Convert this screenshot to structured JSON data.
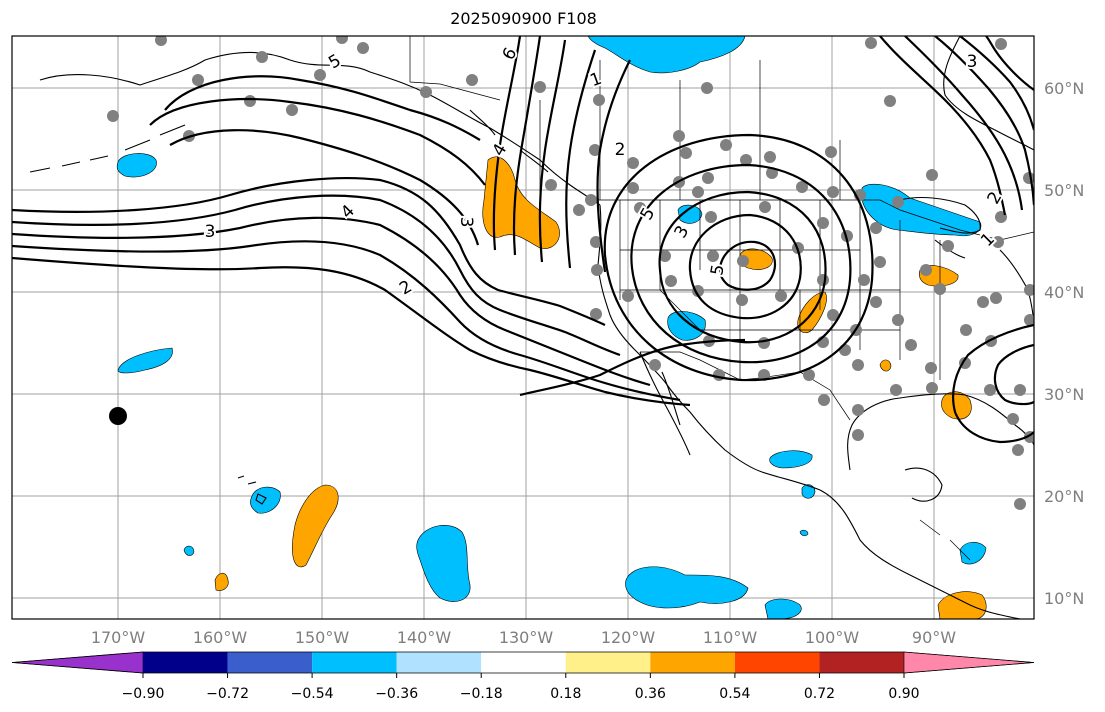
{
  "title": "2025090900 F108",
  "map": {
    "lon_ticks": [
      "170°W",
      "160°W",
      "150°W",
      "140°W",
      "130°W",
      "120°W",
      "110°W",
      "100°W",
      "90°W"
    ],
    "lat_ticks": [
      "10°N",
      "20°N",
      "30°N",
      "40°N",
      "50°N",
      "60°N"
    ],
    "contour_labels": [
      "6",
      "5",
      "1",
      "3",
      "4",
      "3",
      "2",
      "5",
      "4",
      "3",
      "2",
      "5",
      "3",
      "2",
      "1"
    ],
    "contour_color": "#000000",
    "station_dot_color": "#808080"
  },
  "colorbar": {
    "ticks": [
      "−0.90",
      "−0.72",
      "−0.54",
      "−0.36",
      "−0.18",
      "0.18",
      "0.36",
      "0.54",
      "0.72",
      "0.90"
    ],
    "colors": [
      "#9932cc",
      "#00008b",
      "#3a5fcd",
      "#00bfff",
      "#b0e2ff",
      "#ffffff",
      "#fff08a",
      "#ffa500",
      "#ff4500",
      "#b22222",
      "#ff88aa"
    ]
  }
}
